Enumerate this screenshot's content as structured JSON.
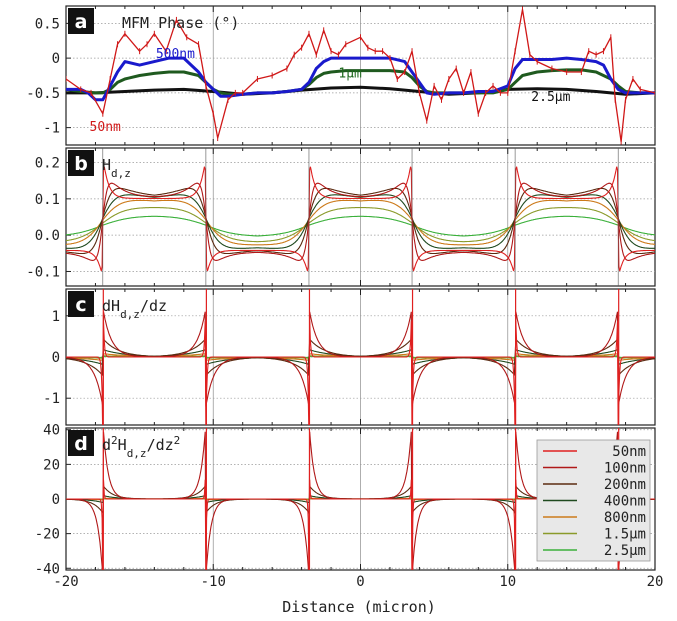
{
  "figure": {
    "xlabel": "Distance (micron)",
    "xlim": [
      -20,
      20
    ],
    "x_ticks": [
      "-20",
      "-10",
      "0",
      "10",
      "20"
    ],
    "colors": {
      "50nm": "#e02020",
      "100nm": "#b01818",
      "200nm": "#5a2a10",
      "400nm": "#1f4a1f",
      "800nm": "#cc7a1a",
      "1.5um": "#8a9a2a",
      "2.5um": "#3ab03a"
    }
  },
  "chart_data": [
    {
      "panel": "a",
      "type": "line",
      "title": "MFM Phase (°)",
      "ylim": [
        -1.25,
        0.75
      ],
      "y_ticks": [
        "0.5",
        "0",
        "-0.5",
        "-1"
      ],
      "series": [
        {
          "name": "50nm",
          "color": "#d01818",
          "x": [
            -20,
            -19,
            -18.3,
            -17.5,
            -17,
            -16.5,
            -16,
            -15,
            -14.5,
            -14,
            -13.2,
            -12.5,
            -11.8,
            -11,
            -10.5,
            -10,
            -9.7,
            -9,
            -8.5,
            -8,
            -7,
            -6,
            -5,
            -4.5,
            -4,
            -3.5,
            -3,
            -2.5,
            -2,
            -1.5,
            -1,
            0,
            0.5,
            1,
            1.5,
            2,
            2.5,
            3,
            3.5,
            4,
            4.5,
            5,
            5.5,
            6,
            6.5,
            7,
            7.5,
            8,
            8.5,
            9,
            9.5,
            10,
            10.5,
            11,
            11.5,
            12,
            13,
            14,
            15,
            15.5,
            16,
            16.5,
            17,
            17.3,
            17.7,
            18,
            18.5,
            19,
            20
          ],
          "y": [
            -0.3,
            -0.45,
            -0.5,
            -0.8,
            -0.3,
            0.2,
            0.35,
            0.1,
            0.2,
            0.35,
            0.1,
            0.55,
            0.3,
            0.2,
            -0.4,
            -0.8,
            -1.15,
            -0.6,
            -0.5,
            -0.5,
            -0.3,
            -0.25,
            -0.15,
            0.05,
            0.15,
            0.35,
            0.05,
            0.4,
            0.1,
            0.05,
            0.2,
            0.3,
            0.15,
            0.1,
            0.1,
            0.0,
            -0.3,
            -0.2,
            0.1,
            -0.5,
            -0.9,
            -0.4,
            -0.6,
            -0.3,
            -0.15,
            -0.5,
            -0.2,
            -0.8,
            -0.5,
            -0.4,
            -0.5,
            -0.5,
            0.1,
            0.7,
            0.05,
            -0.05,
            -0.15,
            -0.2,
            -0.2,
            0.1,
            0.05,
            0.1,
            0.3,
            -0.6,
            -1.2,
            -0.6,
            -0.3,
            -0.45,
            -0.5
          ]
        },
        {
          "name": "500nm",
          "color": "#1a1acc",
          "x": [
            -20,
            -19,
            -18.5,
            -18,
            -17.5,
            -17,
            -16.5,
            -16,
            -15,
            -14,
            -13,
            -12,
            -11.5,
            -11,
            -10.5,
            -10,
            -9.5,
            -9,
            -8,
            -7,
            -6,
            -5,
            -4,
            -3.5,
            -3,
            -2.5,
            -2,
            -1,
            0,
            1,
            2,
            3,
            3.5,
            4,
            4.5,
            5,
            6,
            7,
            8,
            9,
            10,
            10.5,
            11,
            12,
            13,
            14,
            15,
            16,
            16.5,
            17,
            17.5,
            18,
            19,
            20
          ],
          "y": [
            -0.45,
            -0.45,
            -0.5,
            -0.6,
            -0.6,
            -0.4,
            -0.2,
            -0.05,
            -0.1,
            -0.05,
            0.0,
            0.0,
            -0.1,
            -0.2,
            -0.35,
            -0.45,
            -0.55,
            -0.55,
            -0.52,
            -0.5,
            -0.5,
            -0.48,
            -0.45,
            -0.35,
            -0.15,
            -0.05,
            0.0,
            0.0,
            0.0,
            0.0,
            0.0,
            -0.05,
            -0.2,
            -0.35,
            -0.5,
            -0.52,
            -0.5,
            -0.5,
            -0.48,
            -0.48,
            -0.4,
            -0.15,
            -0.02,
            -0.02,
            -0.02,
            0.0,
            -0.02,
            -0.05,
            -0.1,
            -0.3,
            -0.45,
            -0.5,
            -0.5,
            -0.5
          ]
        },
        {
          "name": "1μm",
          "color": "#1f5a1f",
          "x": [
            -20,
            -19,
            -18,
            -17.5,
            -17,
            -16.5,
            -16,
            -15,
            -14,
            -13,
            -12,
            -11,
            -10.5,
            -10,
            -9.5,
            -9,
            -8,
            -7,
            -6,
            -5,
            -4,
            -3.5,
            -3,
            -2.5,
            -2,
            -1,
            0,
            1,
            2,
            3,
            3.5,
            4,
            4.5,
            5,
            6,
            7,
            8,
            9,
            10,
            10.5,
            11,
            12,
            13,
            14,
            15,
            16,
            17,
            17.5,
            18,
            19,
            20
          ],
          "y": [
            -0.45,
            -0.48,
            -0.5,
            -0.5,
            -0.45,
            -0.35,
            -0.3,
            -0.25,
            -0.22,
            -0.2,
            -0.2,
            -0.25,
            -0.35,
            -0.45,
            -0.5,
            -0.52,
            -0.52,
            -0.5,
            -0.5,
            -0.48,
            -0.45,
            -0.38,
            -0.28,
            -0.22,
            -0.2,
            -0.18,
            -0.18,
            -0.18,
            -0.18,
            -0.2,
            -0.28,
            -0.4,
            -0.48,
            -0.5,
            -0.5,
            -0.5,
            -0.5,
            -0.5,
            -0.45,
            -0.35,
            -0.25,
            -0.2,
            -0.18,
            -0.17,
            -0.17,
            -0.2,
            -0.3,
            -0.4,
            -0.48,
            -0.5,
            -0.5
          ]
        },
        {
          "name": "2.5μm",
          "color": "#111111",
          "x": [
            -20,
            -18,
            -16,
            -14,
            -12,
            -10,
            -8,
            -6,
            -4,
            -2,
            0,
            2,
            4,
            6,
            8,
            10,
            12,
            14,
            16,
            18,
            20
          ],
          "y": [
            -0.5,
            -0.5,
            -0.48,
            -0.46,
            -0.45,
            -0.48,
            -0.52,
            -0.5,
            -0.46,
            -0.43,
            -0.42,
            -0.44,
            -0.48,
            -0.52,
            -0.5,
            -0.45,
            -0.44,
            -0.45,
            -0.48,
            -0.52,
            -0.5
          ]
        }
      ],
      "annotations": [
        "500nm",
        "1μm",
        "2.5μm",
        "50nm"
      ]
    },
    {
      "panel": "b",
      "type": "line",
      "title": "H_{d,z}",
      "ylim": [
        -0.14,
        0.24
      ],
      "y_ticks": [
        "0.2",
        "0.1",
        "0.0",
        "-0.1"
      ],
      "domain_walls": [
        -17.5,
        -10.5,
        -3.5,
        3.5,
        10.5,
        17.5
      ],
      "series": [
        {
          "name": "50nm",
          "peak": 0.22,
          "trough": -0.12
        },
        {
          "name": "100nm",
          "peak": 0.2,
          "trough": -0.11
        },
        {
          "name": "200nm",
          "peak": 0.178,
          "trough": -0.08
        },
        {
          "name": "400nm",
          "peak": 0.148,
          "trough": -0.055
        },
        {
          "name": "800nm",
          "peak": 0.122,
          "trough": -0.038
        },
        {
          "name": "1.5μm",
          "peak": 0.092,
          "trough": -0.025
        },
        {
          "name": "2.5μm",
          "peak": 0.06,
          "trough": -0.005
        }
      ]
    },
    {
      "panel": "c",
      "type": "line",
      "title": "dH_{d,z}/dz",
      "ylim": [
        -1.65,
        1.65
      ],
      "y_ticks": [
        "1",
        "0",
        "-1"
      ],
      "series": [
        {
          "name": "50nm",
          "amplitude": 2.0
        },
        {
          "name": "100nm",
          "amplitude": 1.2
        },
        {
          "name": "200nm",
          "amplitude": 0.45
        },
        {
          "name": "400nm",
          "amplitude": 0.18
        },
        {
          "name": "800nm",
          "amplitude": 0.08
        },
        {
          "name": "1.5μm",
          "amplitude": 0.03
        },
        {
          "name": "2.5μm",
          "amplitude": 0.01
        }
      ]
    },
    {
      "panel": "d",
      "type": "line",
      "title": "d²H_{d,z}/dz²",
      "ylim": [
        -41,
        41
      ],
      "y_ticks": [
        "40",
        "20",
        "0",
        "-20",
        "-40"
      ],
      "legend": {
        "position": "bottom-right",
        "entries": [
          "50nm",
          "100nm",
          "200nm",
          "400nm",
          "800nm",
          "1.5μm",
          "2.5μm"
        ]
      },
      "series": [
        {
          "name": "50nm",
          "amplitude": 45
        },
        {
          "name": "100nm",
          "amplitude": 45
        },
        {
          "name": "200nm",
          "amplitude": 8
        },
        {
          "name": "400nm",
          "amplitude": 2
        },
        {
          "name": "800nm",
          "amplitude": 0.5
        },
        {
          "name": "1.5μm",
          "amplitude": 0.1
        },
        {
          "name": "2.5μm",
          "amplitude": 0.02
        }
      ]
    }
  ],
  "panel_letters": [
    "a",
    "b",
    "c",
    "d"
  ]
}
